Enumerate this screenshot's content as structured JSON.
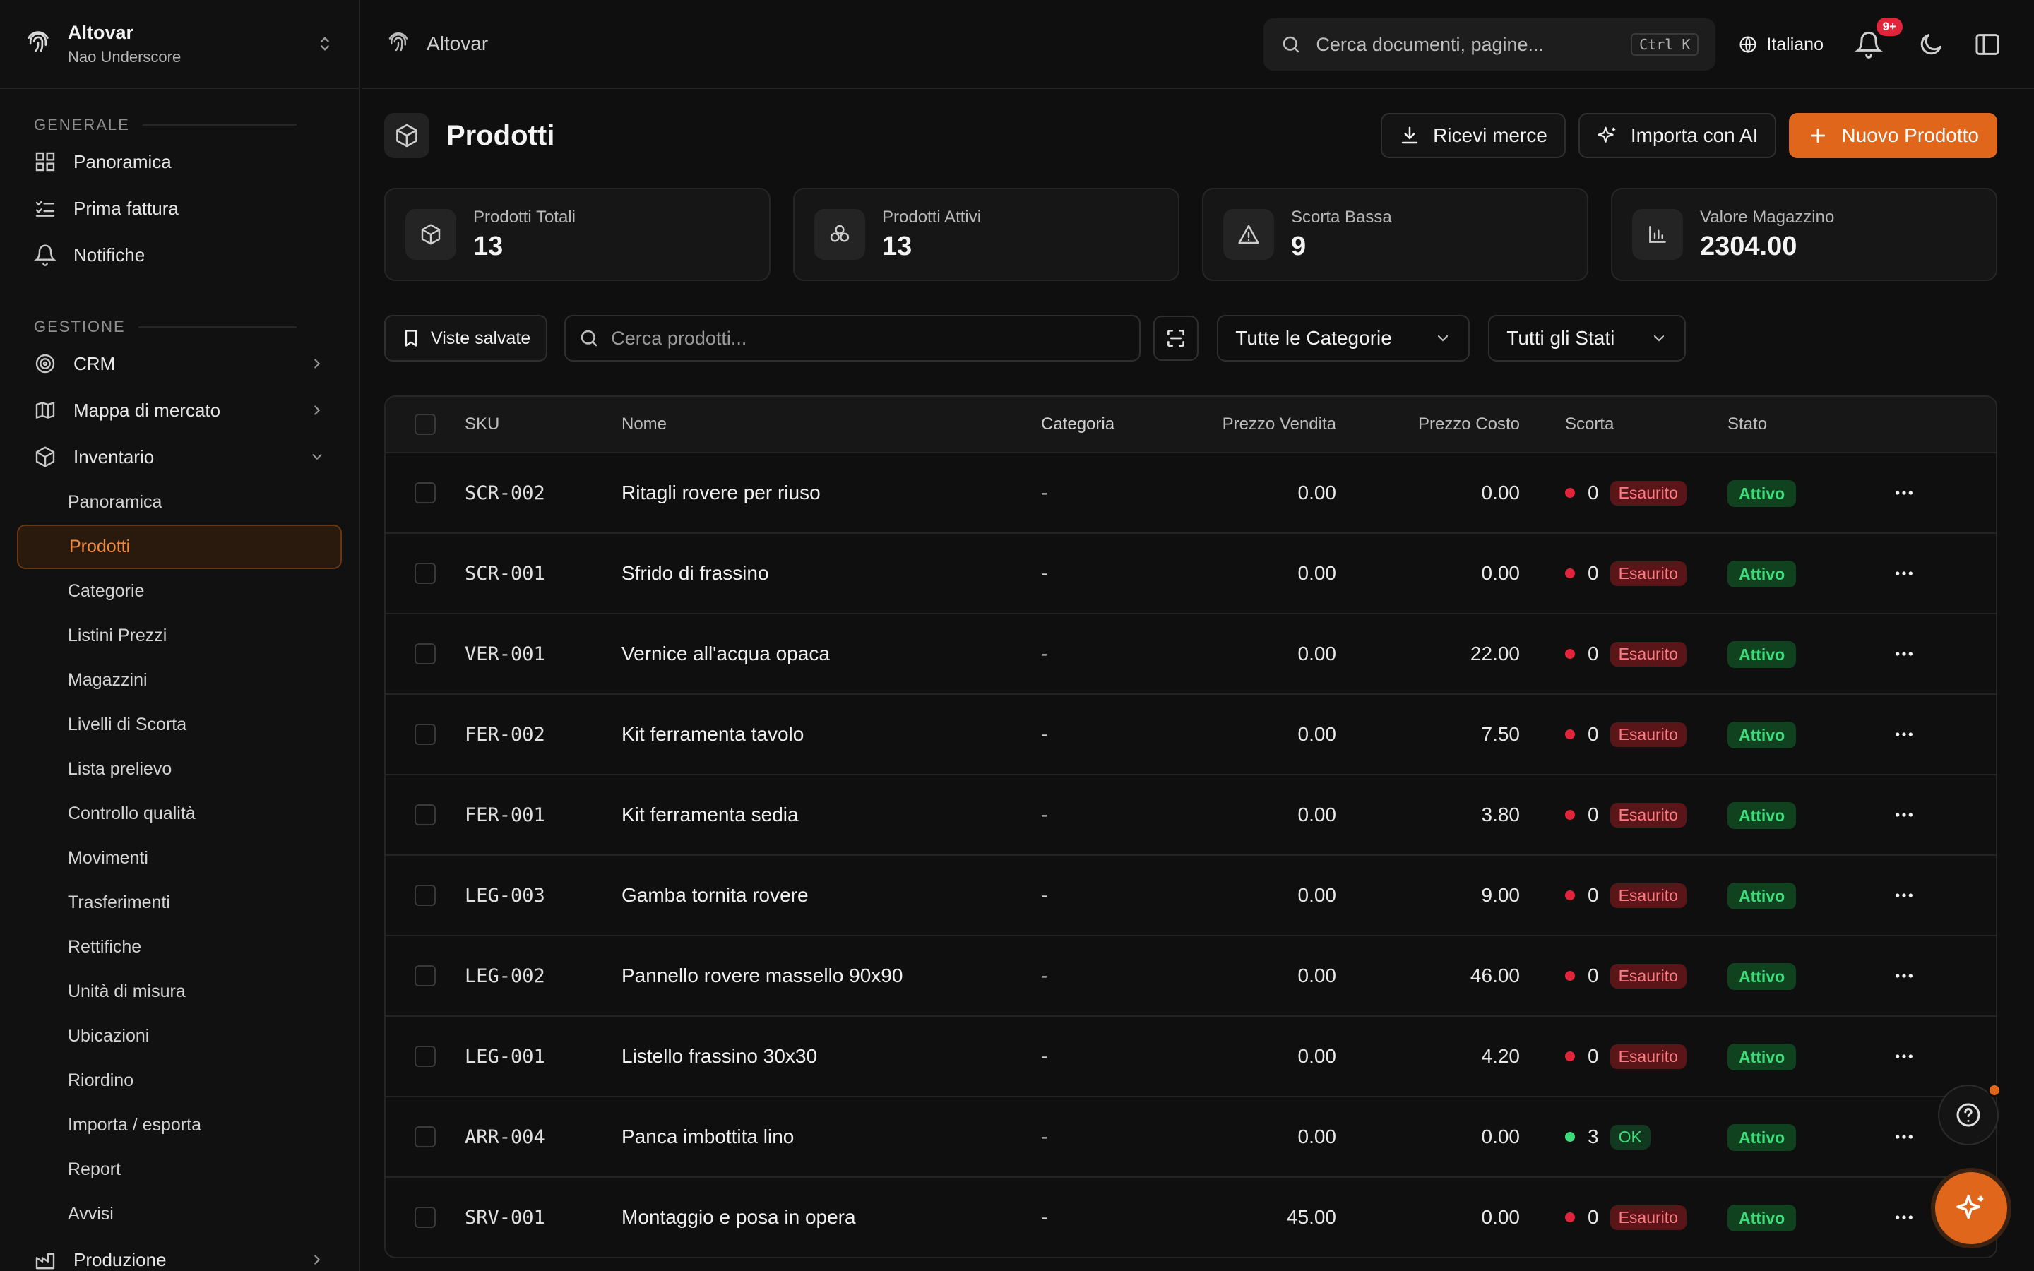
{
  "workspace": {
    "name": "Altovar",
    "user": "Nao Underscore"
  },
  "sidebar": {
    "groups": [
      {
        "label": "GENERALE",
        "items": [
          {
            "label": "Panoramica",
            "icon": "dashboard-icon"
          },
          {
            "label": "Prima fattura",
            "icon": "checklist-icon"
          },
          {
            "label": "Notifiche",
            "icon": "bell-icon"
          }
        ]
      },
      {
        "label": "GESTIONE",
        "items": [
          {
            "label": "CRM",
            "icon": "target-icon"
          },
          {
            "label": "Mappa di mercato",
            "icon": "map-icon"
          },
          {
            "label": "Inventario",
            "icon": "package-icon"
          }
        ]
      }
    ],
    "inventory_sub": [
      "Panoramica",
      "Prodotti",
      "Categorie",
      "Listini Prezzi",
      "Magazzini",
      "Livelli di Scorta",
      "Lista prelievo",
      "Controllo qualità",
      "Movimenti",
      "Trasferimenti",
      "Rettifiche",
      "Unità di misura",
      "Ubicazioni",
      "Riordino",
      "Importa / esporta",
      "Report",
      "Avvisi"
    ],
    "active_sub": "Prodotti",
    "last_item": {
      "label": "Produzione",
      "icon": "factory-icon"
    }
  },
  "topbar": {
    "breadcrumb": "Altovar",
    "search_placeholder": "Cerca documenti, pagine...",
    "shortcut": "Ctrl K",
    "language": "Italiano",
    "notif_badge": "9+"
  },
  "page": {
    "title": "Prodotti",
    "actions": {
      "receive": "Ricevi merce",
      "import_ai": "Importa con AI",
      "new": "Nuovo Prodotto"
    }
  },
  "stats": [
    {
      "label": "Prodotti Totali",
      "value": "13",
      "icon": "box-icon"
    },
    {
      "label": "Prodotti Attivi",
      "value": "13",
      "icon": "boxes-icon"
    },
    {
      "label": "Scorta Bassa",
      "value": "9",
      "icon": "warning-icon"
    },
    {
      "label": "Valore Magazzino",
      "value": "2304.00",
      "icon": "bar-chart-icon"
    }
  ],
  "filters": {
    "saved_views": "Viste salvate",
    "search_placeholder": "Cerca prodotti...",
    "category": "Tutte le Categorie",
    "status": "Tutti gli Stati"
  },
  "table": {
    "columns": {
      "sku": "SKU",
      "nome": "Nome",
      "categoria": "Categoria",
      "prezzo_vendita": "Prezzo Vendita",
      "prezzo_costo": "Prezzo Costo",
      "scorta": "Scorta",
      "stato": "Stato"
    },
    "rows": [
      {
        "sku": "SCR-002",
        "nome": "Ritagli rovere per riuso",
        "categoria": "-",
        "pv": "0.00",
        "pc": "0.00",
        "qty": "0",
        "stock": "Esaurito",
        "stato": "Attivo"
      },
      {
        "sku": "SCR-001",
        "nome": "Sfrido di frassino",
        "categoria": "-",
        "pv": "0.00",
        "pc": "0.00",
        "qty": "0",
        "stock": "Esaurito",
        "stato": "Attivo"
      },
      {
        "sku": "VER-001",
        "nome": "Vernice all'acqua opaca",
        "categoria": "-",
        "pv": "0.00",
        "pc": "22.00",
        "qty": "0",
        "stock": "Esaurito",
        "stato": "Attivo"
      },
      {
        "sku": "FER-002",
        "nome": "Kit ferramenta tavolo",
        "categoria": "-",
        "pv": "0.00",
        "pc": "7.50",
        "qty": "0",
        "stock": "Esaurito",
        "stato": "Attivo"
      },
      {
        "sku": "FER-001",
        "nome": "Kit ferramenta sedia",
        "categoria": "-",
        "pv": "0.00",
        "pc": "3.80",
        "qty": "0",
        "stock": "Esaurito",
        "stato": "Attivo"
      },
      {
        "sku": "LEG-003",
        "nome": "Gamba tornita rovere",
        "categoria": "-",
        "pv": "0.00",
        "pc": "9.00",
        "qty": "0",
        "stock": "Esaurito",
        "stato": "Attivo"
      },
      {
        "sku": "LEG-002",
        "nome": "Pannello rovere massello 90x90",
        "categoria": "-",
        "pv": "0.00",
        "pc": "46.00",
        "qty": "0",
        "stock": "Esaurito",
        "stato": "Attivo"
      },
      {
        "sku": "LEG-001",
        "nome": "Listello frassino 30x30",
        "categoria": "-",
        "pv": "0.00",
        "pc": "4.20",
        "qty": "0",
        "stock": "Esaurito",
        "stato": "Attivo"
      },
      {
        "sku": "ARR-004",
        "nome": "Panca imbottita lino",
        "categoria": "-",
        "pv": "0.00",
        "pc": "0.00",
        "qty": "3",
        "stock": "OK",
        "stato": "Attivo"
      },
      {
        "sku": "SRV-001",
        "nome": "Montaggio e posa in opera",
        "categoria": "-",
        "pv": "45.00",
        "pc": "0.00",
        "qty": "0",
        "stock": "Esaurito",
        "stato": "Attivo"
      }
    ]
  },
  "colors": {
    "accent": "#e0661b",
    "danger": "#ff7b84",
    "success": "#3ddc7a",
    "background": "#0f0f0f"
  }
}
